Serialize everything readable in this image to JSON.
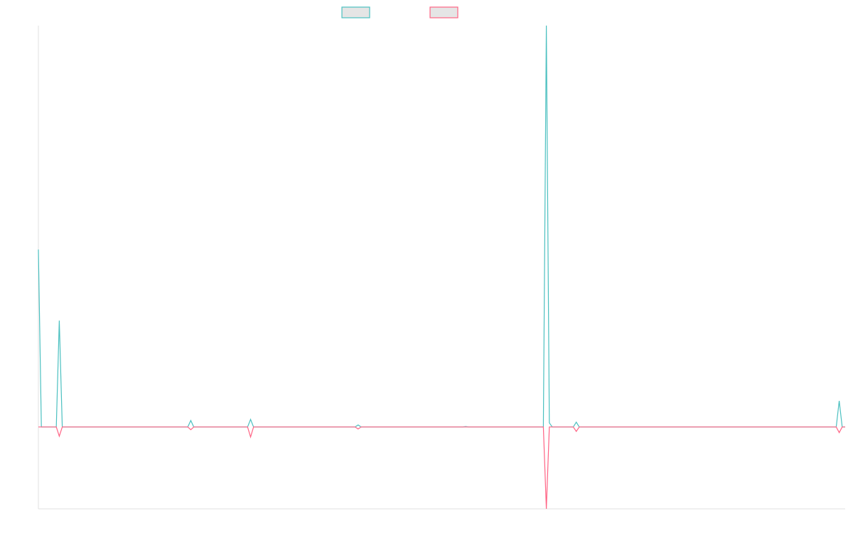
{
  "chart_data": {
    "type": "line",
    "title": "",
    "xlabel": "",
    "ylabel": "",
    "xlim": [
      0,
      270
    ],
    "ylim": [
      -20.4,
      100
    ],
    "grid": false,
    "legend": "top-center",
    "legend_fill": "#e5e5e5",
    "x": [
      0,
      1,
      6,
      7,
      8,
      50,
      51,
      52,
      70,
      71,
      72,
      106,
      107,
      108,
      142,
      143,
      144,
      169,
      170,
      171,
      172,
      179,
      180,
      181,
      267,
      268,
      269,
      270
    ],
    "series": [
      {
        "color": "#4bc0c0",
        "values": [
          44.2,
          0,
          0,
          26.5,
          0,
          0,
          1.6,
          0,
          0,
          1.9,
          0,
          0,
          0.5,
          0,
          0,
          0.1,
          0,
          0,
          100,
          1,
          0,
          0,
          1.2,
          0,
          0,
          6.5,
          0,
          0
        ]
      },
      {
        "color": "#ff6384",
        "values": [
          0,
          0,
          0,
          -2.3,
          0,
          0,
          -0.7,
          0,
          0,
          -2.5,
          0,
          0,
          -0.5,
          0,
          0,
          0,
          0,
          0,
          -20.4,
          0,
          0,
          0,
          -1.1,
          0,
          0,
          -1.4,
          0,
          0
        ]
      }
    ]
  }
}
